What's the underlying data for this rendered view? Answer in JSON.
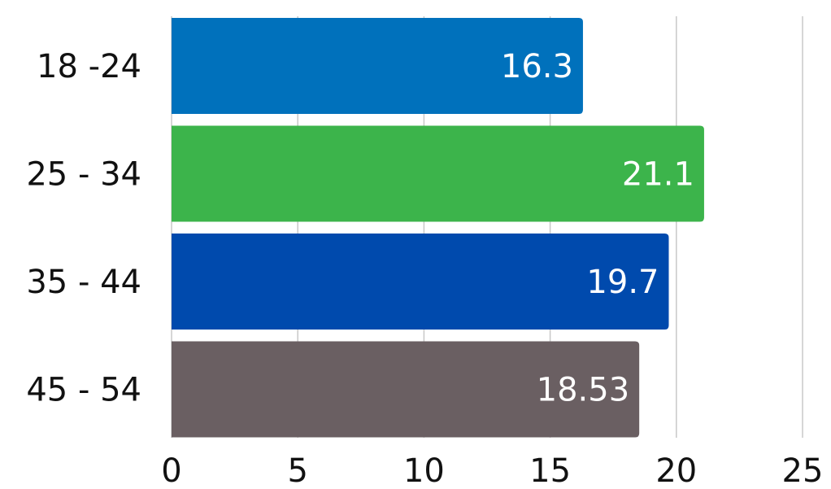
{
  "chart_data": {
    "type": "bar",
    "orientation": "horizontal",
    "categories": [
      "18 -24",
      "25 - 34",
      "35 - 44",
      "45 - 54"
    ],
    "values": [
      16.3,
      21.1,
      19.7,
      18.53
    ],
    "value_labels": [
      "16.3",
      "21.1",
      "19.7",
      "18.53"
    ],
    "bar_colors": [
      "#0071BC",
      "#3CB44B",
      "#004AAD",
      "#6A5F62"
    ],
    "title": "",
    "xlabel": "",
    "ylabel": "",
    "xlim": [
      0,
      25
    ],
    "x_ticks": [
      0,
      5,
      10,
      15,
      20,
      25
    ],
    "x_tick_labels": [
      "0",
      "5",
      "10",
      "15",
      "20",
      "25"
    ],
    "grid": true,
    "legend": "none"
  }
}
